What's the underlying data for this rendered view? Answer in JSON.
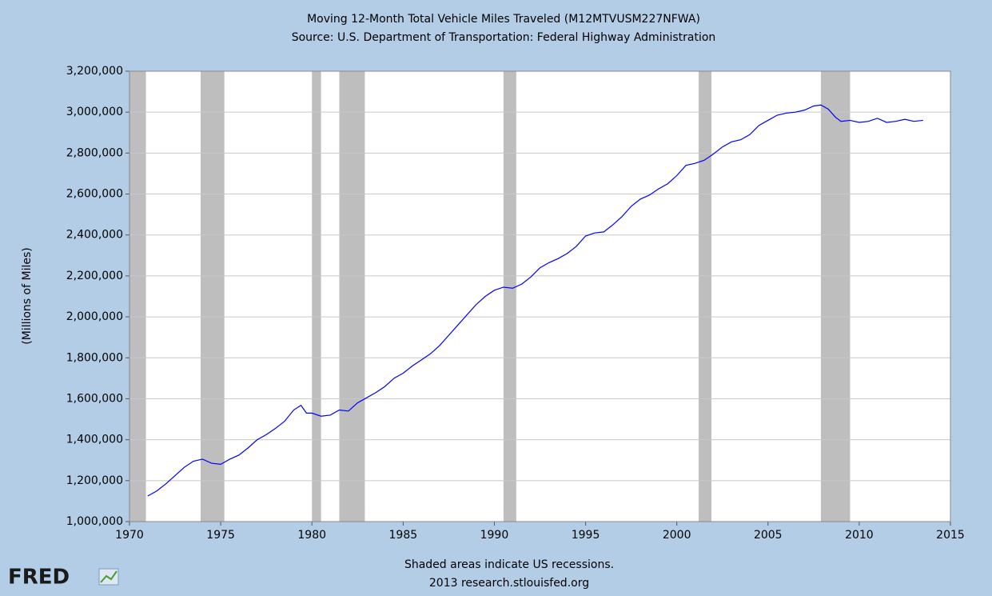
{
  "chart_data": {
    "type": "line",
    "title": "Moving 12-Month Total Vehicle Miles Traveled (M12MTVUSM227NFWA)",
    "subtitle": "Source: U.S. Department of Transportation: Federal Highway Administration",
    "ylabel": "(Millions of Miles)",
    "note": "Shaded areas indicate US recessions.",
    "source": "2013 research.stlouisfed.org",
    "logo": "FRED",
    "xlim": [
      1970,
      2015
    ],
    "xticks": [
      1970,
      1975,
      1980,
      1985,
      1990,
      1995,
      2000,
      2005,
      2010,
      2015
    ],
    "ylim": [
      1000000,
      3200000
    ],
    "yticks": [
      {
        "value": 1000000,
        "label": "1,000,000"
      },
      {
        "value": 1200000,
        "label": "1,200,000"
      },
      {
        "value": 1400000,
        "label": "1,400,000"
      },
      {
        "value": 1600000,
        "label": "1,600,000"
      },
      {
        "value": 1800000,
        "label": "1,800,000"
      },
      {
        "value": 2000000,
        "label": "2,000,000"
      },
      {
        "value": 2200000,
        "label": "2,200,000"
      },
      {
        "value": 2400000,
        "label": "2,400,000"
      },
      {
        "value": 2600000,
        "label": "2,600,000"
      },
      {
        "value": 2800000,
        "label": "2,800,000"
      },
      {
        "value": 3000000,
        "label": "3,000,000"
      },
      {
        "value": 3200000,
        "label": "3,200,000"
      }
    ],
    "grid": true,
    "recession_color": "#bebebe",
    "recessions": [
      [
        1970.0,
        1970.9
      ],
      [
        1973.9,
        1975.2
      ],
      [
        1980.0,
        1980.5
      ],
      [
        1981.5,
        1982.9
      ],
      [
        1990.5,
        1991.2
      ],
      [
        2001.2,
        2001.9
      ],
      [
        2007.9,
        2009.5
      ]
    ],
    "x": [
      1971.0,
      1971.5,
      1972.0,
      1972.5,
      1973.0,
      1973.5,
      1974.0,
      1974.5,
      1975.0,
      1975.5,
      1976.0,
      1976.5,
      1977.0,
      1977.5,
      1978.0,
      1978.5,
      1979.0,
      1979.4,
      1979.7,
      1980.0,
      1980.5,
      1981.0,
      1981.5,
      1982.0,
      1982.5,
      1983.0,
      1983.5,
      1984.0,
      1984.5,
      1985.0,
      1985.5,
      1986.0,
      1986.5,
      1987.0,
      1987.5,
      1988.0,
      1988.5,
      1989.0,
      1989.5,
      1990.0,
      1990.5,
      1991.0,
      1991.5,
      1992.0,
      1992.5,
      1993.0,
      1993.5,
      1994.0,
      1994.5,
      1995.0,
      1995.5,
      1996.0,
      1996.5,
      1997.0,
      1997.5,
      1998.0,
      1998.5,
      1999.0,
      1999.5,
      2000.0,
      2000.5,
      2001.0,
      2001.5,
      2002.0,
      2002.5,
      2003.0,
      2003.5,
      2004.0,
      2004.5,
      2005.0,
      2005.5,
      2006.0,
      2006.5,
      2007.0,
      2007.5,
      2007.9,
      2008.3,
      2008.7,
      2009.0,
      2009.5,
      2010.0,
      2010.5,
      2011.0,
      2011.5,
      2012.0,
      2012.5,
      2013.0,
      2013.5
    ],
    "series": [
      {
        "name": "M12MTVUSM227NFWA",
        "color": "#0000ff",
        "values": [
          1125000,
          1150000,
          1185000,
          1225000,
          1265000,
          1295000,
          1305000,
          1285000,
          1280000,
          1305000,
          1325000,
          1360000,
          1400000,
          1425000,
          1455000,
          1490000,
          1545000,
          1568000,
          1530000,
          1530000,
          1515000,
          1520000,
          1545000,
          1540000,
          1580000,
          1605000,
          1630000,
          1660000,
          1700000,
          1725000,
          1760000,
          1790000,
          1820000,
          1860000,
          1910000,
          1960000,
          2010000,
          2060000,
          2100000,
          2130000,
          2145000,
          2140000,
          2160000,
          2195000,
          2240000,
          2265000,
          2285000,
          2310000,
          2345000,
          2395000,
          2410000,
          2415000,
          2450000,
          2490000,
          2540000,
          2575000,
          2595000,
          2625000,
          2650000,
          2690000,
          2740000,
          2750000,
          2765000,
          2795000,
          2830000,
          2855000,
          2865000,
          2890000,
          2935000,
          2960000,
          2985000,
          2995000,
          3000000,
          3010000,
          3030000,
          3035000,
          3015000,
          2975000,
          2955000,
          2960000,
          2950000,
          2955000,
          2970000,
          2950000,
          2955000,
          2965000,
          2955000,
          2960000
        ]
      }
    ]
  }
}
